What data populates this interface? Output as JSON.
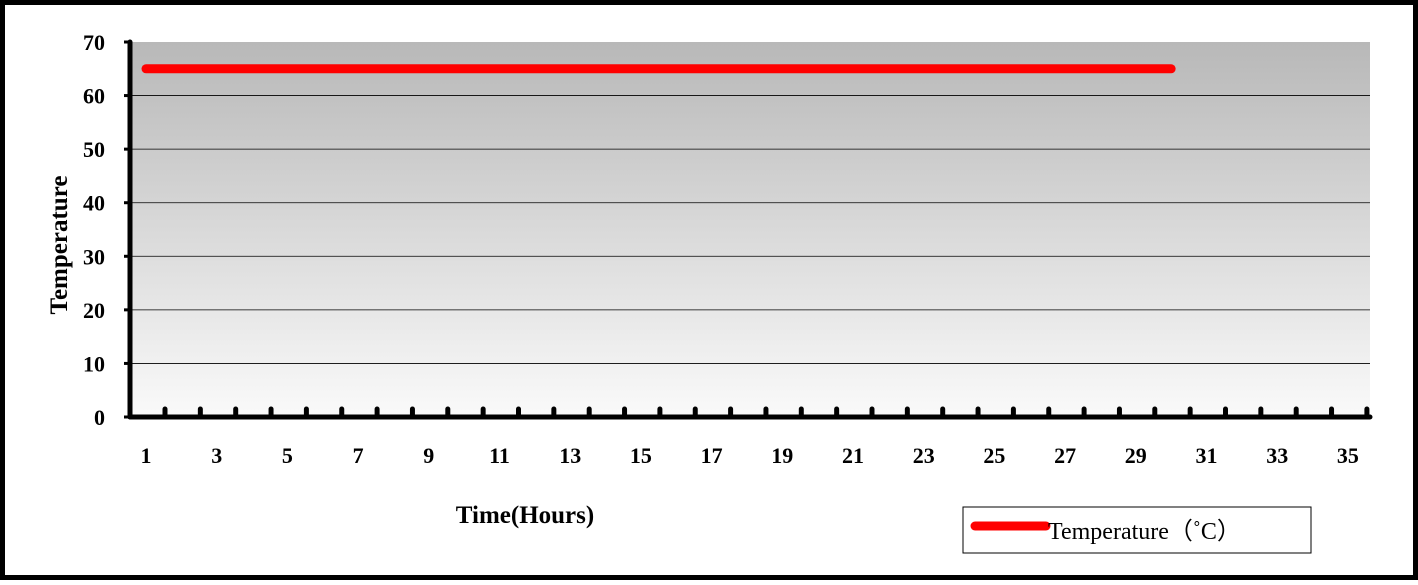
{
  "chart_data": {
    "type": "line",
    "title": "",
    "xlabel": "Time(Hours)",
    "ylabel": "Temperature",
    "x_tick_labels": [
      "1",
      "3",
      "5",
      "7",
      "9",
      "11",
      "13",
      "15",
      "17",
      "19",
      "21",
      "23",
      "25",
      "27",
      "29",
      "31",
      "33",
      "35"
    ],
    "y_tick_labels": [
      "0",
      "10",
      "20",
      "30",
      "40",
      "50",
      "60",
      "70"
    ],
    "xlim": [
      1,
      36
    ],
    "ylim": [
      0,
      70
    ],
    "grid": "horizontal",
    "legend_position": "bottom-right",
    "series": [
      {
        "name": "Temperature（˚C）",
        "color": "#ff0000",
        "x": [
          1,
          30
        ],
        "y": [
          65,
          65
        ]
      }
    ]
  }
}
